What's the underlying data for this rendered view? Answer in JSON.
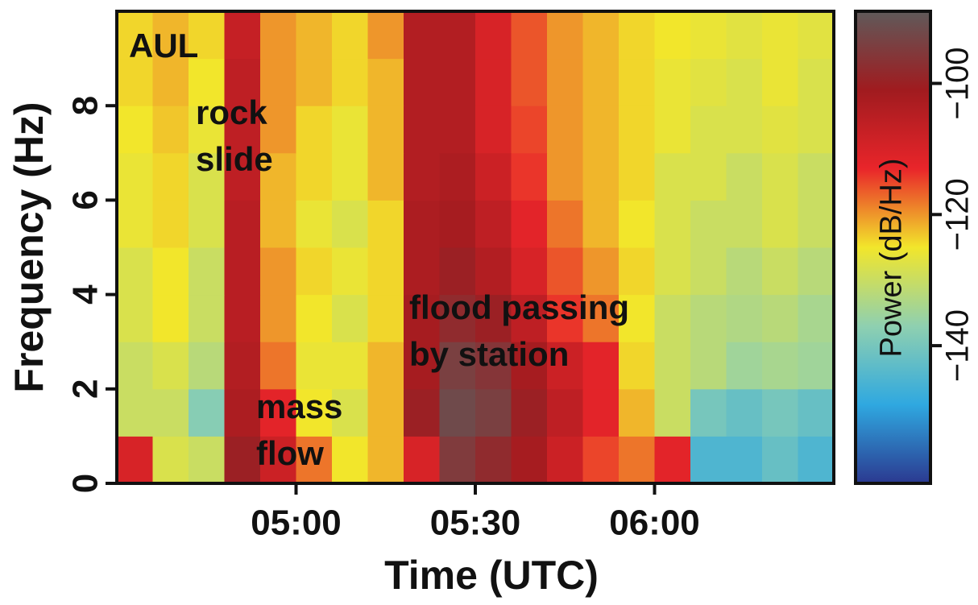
{
  "chart_data": {
    "type": "spectrogram",
    "xlabel": "Time (UTC)",
    "ylabel": "Frequency (Hz)",
    "colorbar_label": "Power (dB/Hz)",
    "annotations": [
      [
        "AUL"
      ],
      [
        "rock",
        "slide"
      ],
      [
        "mass",
        "flow"
      ],
      [
        "flood passing",
        "by station"
      ]
    ],
    "xlim": [
      "04:30",
      "06:30"
    ],
    "xticks": [
      "05:00",
      "05:30",
      "06:00"
    ],
    "ylim": [
      0,
      10
    ],
    "yticks": [
      0,
      2,
      4,
      6,
      8
    ],
    "clim": [
      -161,
      -89
    ],
    "cticks": [
      {
        "value": -140,
        "label": "−140"
      },
      {
        "value": -120,
        "label": "−120"
      },
      {
        "value": -100,
        "label": "−100"
      }
    ],
    "colormap": [
      "#2b3990",
      "#2fa8e0",
      "#8fd0b0",
      "#f2e62b",
      "#e9252a",
      "#a01b1f",
      "#5f5a5a"
    ],
    "xbins": [
      "04:30",
      "04:36",
      "04:42",
      "04:48",
      "04:54",
      "05:00",
      "05:06",
      "05:12",
      "05:18",
      "05:24",
      "05:30",
      "05:36",
      "05:42",
      "05:48",
      "05:54",
      "06:00",
      "06:06",
      "06:12",
      "06:18",
      "06:24",
      "06:30"
    ],
    "ybins": [
      0,
      1,
      2,
      3,
      4,
      5,
      6,
      7,
      8,
      9,
      10
    ],
    "values": [
      [
        -110,
        -128,
        -130,
        -100,
        -108,
        -118,
        -125,
        -122,
        -110,
        -95,
        -98,
        -102,
        -108,
        -115,
        -118,
        -112,
        -145,
        -145,
        -142,
        -145
      ],
      [
        -130,
        -130,
        -138,
        -103,
        -112,
        -125,
        -128,
        -122,
        -100,
        -92,
        -94,
        -100,
        -106,
        -112,
        -122,
        -130,
        -140,
        -142,
        -140,
        -142
      ],
      [
        -130,
        -128,
        -132,
        -104,
        -118,
        -126,
        -126,
        -122,
        -102,
        -94,
        -96,
        -102,
        -108,
        -112,
        -124,
        -130,
        -132,
        -135,
        -134,
        -135
      ],
      [
        -128,
        -125,
        -130,
        -105,
        -120,
        -125,
        -128,
        -124,
        -102,
        -98,
        -100,
        -106,
        -114,
        -118,
        -125,
        -130,
        -132,
        -133,
        -132,
        -134
      ],
      [
        -128,
        -125,
        -130,
        -105,
        -120,
        -124,
        -126,
        -124,
        -103,
        -100,
        -104,
        -110,
        -116,
        -120,
        -124,
        -128,
        -130,
        -132,
        -130,
        -132
      ],
      [
        -126,
        -124,
        -128,
        -105,
        -122,
        -126,
        -128,
        -124,
        -103,
        -102,
        -106,
        -112,
        -118,
        -122,
        -125,
        -128,
        -130,
        -130,
        -128,
        -130
      ],
      [
        -126,
        -124,
        -128,
        -106,
        -122,
        -124,
        -126,
        -122,
        -104,
        -103,
        -108,
        -114,
        -120,
        -122,
        -124,
        -128,
        -128,
        -130,
        -128,
        -130
      ],
      [
        -125,
        -123,
        -126,
        -106,
        -120,
        -124,
        -126,
        -122,
        -104,
        -104,
        -110,
        -115,
        -120,
        -122,
        -124,
        -126,
        -128,
        -128,
        -127,
        -128
      ],
      [
        -124,
        -122,
        -125,
        -106,
        -120,
        -122,
        -124,
        -122,
        -104,
        -104,
        -110,
        -116,
        -120,
        -122,
        -124,
        -126,
        -127,
        -128,
        -126,
        -128
      ],
      [
        -124,
        -122,
        -124,
        -107,
        -120,
        -122,
        -124,
        -120,
        -104,
        -104,
        -110,
        -116,
        -120,
        -122,
        -124,
        -125,
        -126,
        -127,
        -126,
        -127
      ]
    ]
  }
}
